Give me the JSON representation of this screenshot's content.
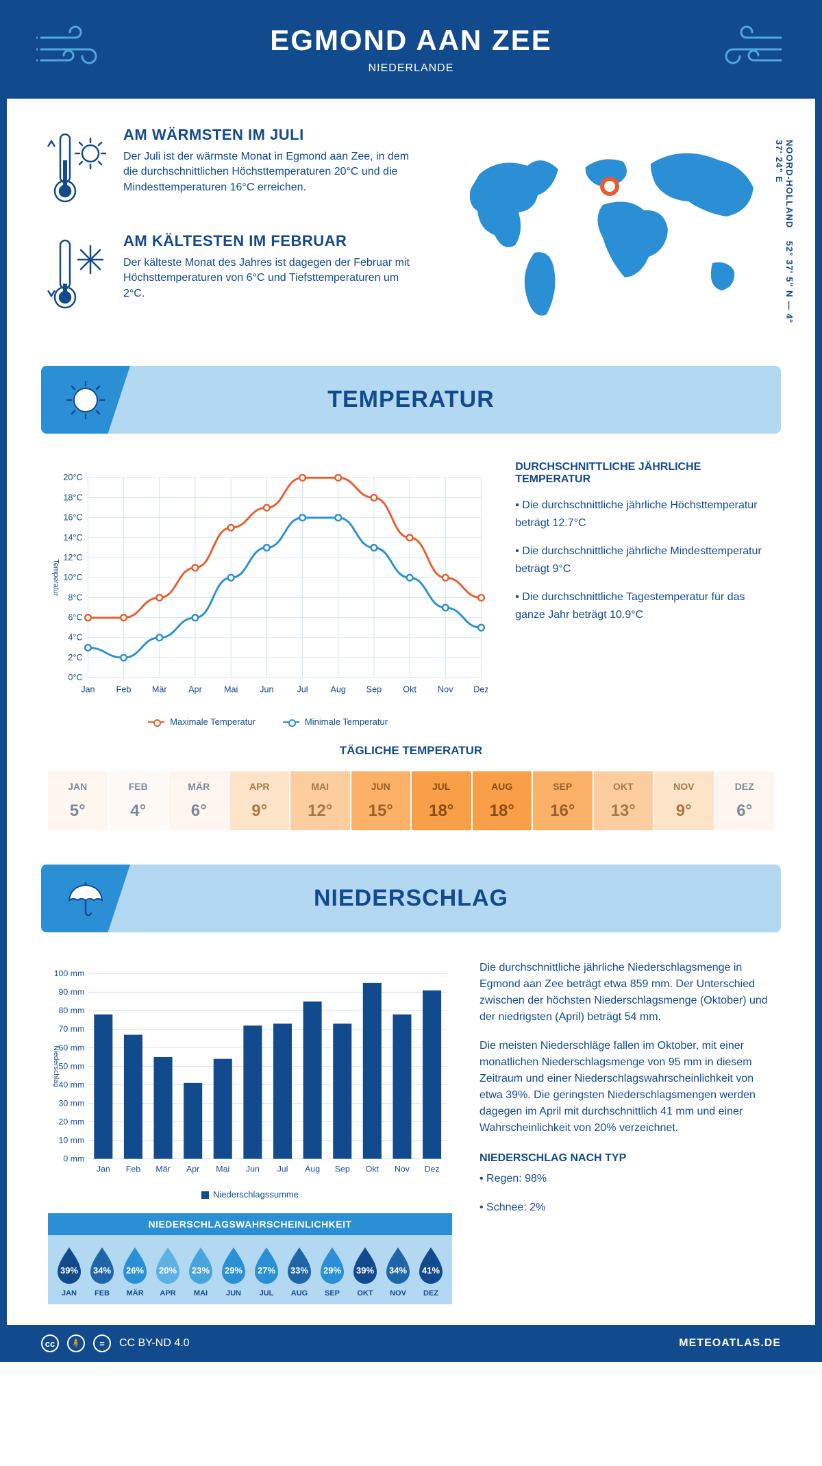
{
  "header": {
    "title": "EGMOND AAN ZEE",
    "subtitle": "NIEDERLANDE"
  },
  "coords": {
    "region": "NOORD-HOLLAND",
    "lat": "52° 37' 5\" N",
    "lon": "4° 37' 24\" E"
  },
  "warm": {
    "title": "AM WÄRMSTEN IM JULI",
    "text": "Der Juli ist der wärmste Monat in Egmond aan Zee, in dem die durchschnittlichen Höchsttemperaturen 20°C und die Mindesttemperaturen 16°C erreichen."
  },
  "cold": {
    "title": "AM KÄLTESTEN IM FEBRUAR",
    "text": "Der kälteste Monat des Jahres ist dagegen der Februar mit Höchsttemperaturen von 6°C und Tiefsttemperaturen um 2°C."
  },
  "temperature_section_title": "TEMPERATUR",
  "temp_chart": {
    "type": "line",
    "months": [
      "Jan",
      "Feb",
      "Mär",
      "Apr",
      "Mai",
      "Jun",
      "Jul",
      "Aug",
      "Sep",
      "Okt",
      "Nov",
      "Dez"
    ],
    "max_values": [
      6,
      6,
      8,
      11,
      15,
      17,
      20,
      20,
      18,
      14,
      10,
      8
    ],
    "min_values": [
      3,
      2,
      4,
      6,
      10,
      13,
      16,
      16,
      13,
      10,
      7,
      5
    ],
    "max_color": "#e85d2e",
    "min_color": "#2a8fd4",
    "ylim": [
      0,
      20
    ],
    "ytick_step": 2,
    "y_axis_label": "Temperatur",
    "grid_color": "#d5e3f0",
    "legend_max": "Maximale Temperatur",
    "legend_min": "Minimale Temperatur"
  },
  "temp_info": {
    "title": "DURCHSCHNITTLICHE JÄHRLICHE TEMPERATUR",
    "bullets": [
      "• Die durchschnittliche jährliche Höchsttemperatur beträgt 12.7°C",
      "• Die durchschnittliche jährliche Mindesttemperatur beträgt 9°C",
      "• Die durchschnittliche Tagestemperatur für das ganze Jahr beträgt 10.9°C"
    ]
  },
  "daily_temp": {
    "title": "TÄGLICHE TEMPERATUR",
    "months": [
      "JAN",
      "FEB",
      "MÄR",
      "APR",
      "MAI",
      "JUN",
      "JUL",
      "AUG",
      "SEP",
      "OKT",
      "NOV",
      "DEZ"
    ],
    "values": [
      "5°",
      "4°",
      "6°",
      "9°",
      "12°",
      "15°",
      "18°",
      "18°",
      "16°",
      "13°",
      "9°",
      "6°"
    ],
    "colors": [
      "#fff7ef",
      "#fffaf5",
      "#fff7ef",
      "#fde4c9",
      "#fccd9e",
      "#fbb268",
      "#f99f47",
      "#f99f47",
      "#fbb268",
      "#fccd9e",
      "#fde4c9",
      "#fff7ef"
    ],
    "text_colors": [
      "#7a8a9a",
      "#7a8a9a",
      "#7a8a9a",
      "#a87744",
      "#a87744",
      "#9b6027",
      "#8a4c0f",
      "#8a4c0f",
      "#9b6027",
      "#a87744",
      "#a87744",
      "#7a8a9a"
    ]
  },
  "precip_section_title": "NIEDERSCHLAG",
  "precip_chart": {
    "type": "bar",
    "months": [
      "Jan",
      "Feb",
      "Mär",
      "Apr",
      "Mai",
      "Jun",
      "Jul",
      "Aug",
      "Sep",
      "Okt",
      "Nov",
      "Dez"
    ],
    "values": [
      78,
      67,
      55,
      41,
      54,
      72,
      73,
      85,
      73,
      95,
      78,
      91
    ],
    "bar_color": "#124a8e",
    "ylim": [
      0,
      100
    ],
    "ytick_step": 10,
    "y_unit": "mm",
    "y_axis_label": "Niederschlag",
    "legend": "Niederschlagssumme",
    "grid_color": "#d5e3f0"
  },
  "precip_text": {
    "p1": "Die durchschnittliche jährliche Niederschlagsmenge in Egmond aan Zee beträgt etwa 859 mm. Der Unterschied zwischen der höchsten Niederschlagsmenge (Oktober) und der niedrigsten (April) beträgt 54 mm.",
    "p2": "Die meisten Niederschläge fallen im Oktober, mit einer monatlichen Niederschlagsmenge von 95 mm in diesem Zeitraum und einer Niederschlagswahrscheinlichkeit von etwa 39%. Die geringsten Niederschlagsmengen werden dagegen im April mit durchschnittlich 41 mm und einer Wahrscheinlichkeit von 20% verzeichnet.",
    "type_title": "NIEDERSCHLAG NACH TYP",
    "type_bullets": [
      "• Regen: 98%",
      "• Schnee: 2%"
    ]
  },
  "precip_prob": {
    "title": "NIEDERSCHLAGSWAHRSCHEINLICHKEIT",
    "months": [
      "JAN",
      "FEB",
      "MÄR",
      "APR",
      "MAI",
      "JUN",
      "JUL",
      "AUG",
      "SEP",
      "OKT",
      "NOV",
      "DEZ"
    ],
    "pct": [
      "39%",
      "34%",
      "26%",
      "20%",
      "23%",
      "29%",
      "27%",
      "33%",
      "29%",
      "39%",
      "34%",
      "41%"
    ],
    "colors": [
      "#124a8e",
      "#1f66a9",
      "#2a8fd4",
      "#5fb0e4",
      "#4aa4dc",
      "#2a8fd4",
      "#2a8fd4",
      "#1f66a9",
      "#2a8fd4",
      "#124a8e",
      "#1f66a9",
      "#124a8e"
    ]
  },
  "footer": {
    "license": "CC BY-ND 4.0",
    "site": "METEOATLAS.DE"
  }
}
